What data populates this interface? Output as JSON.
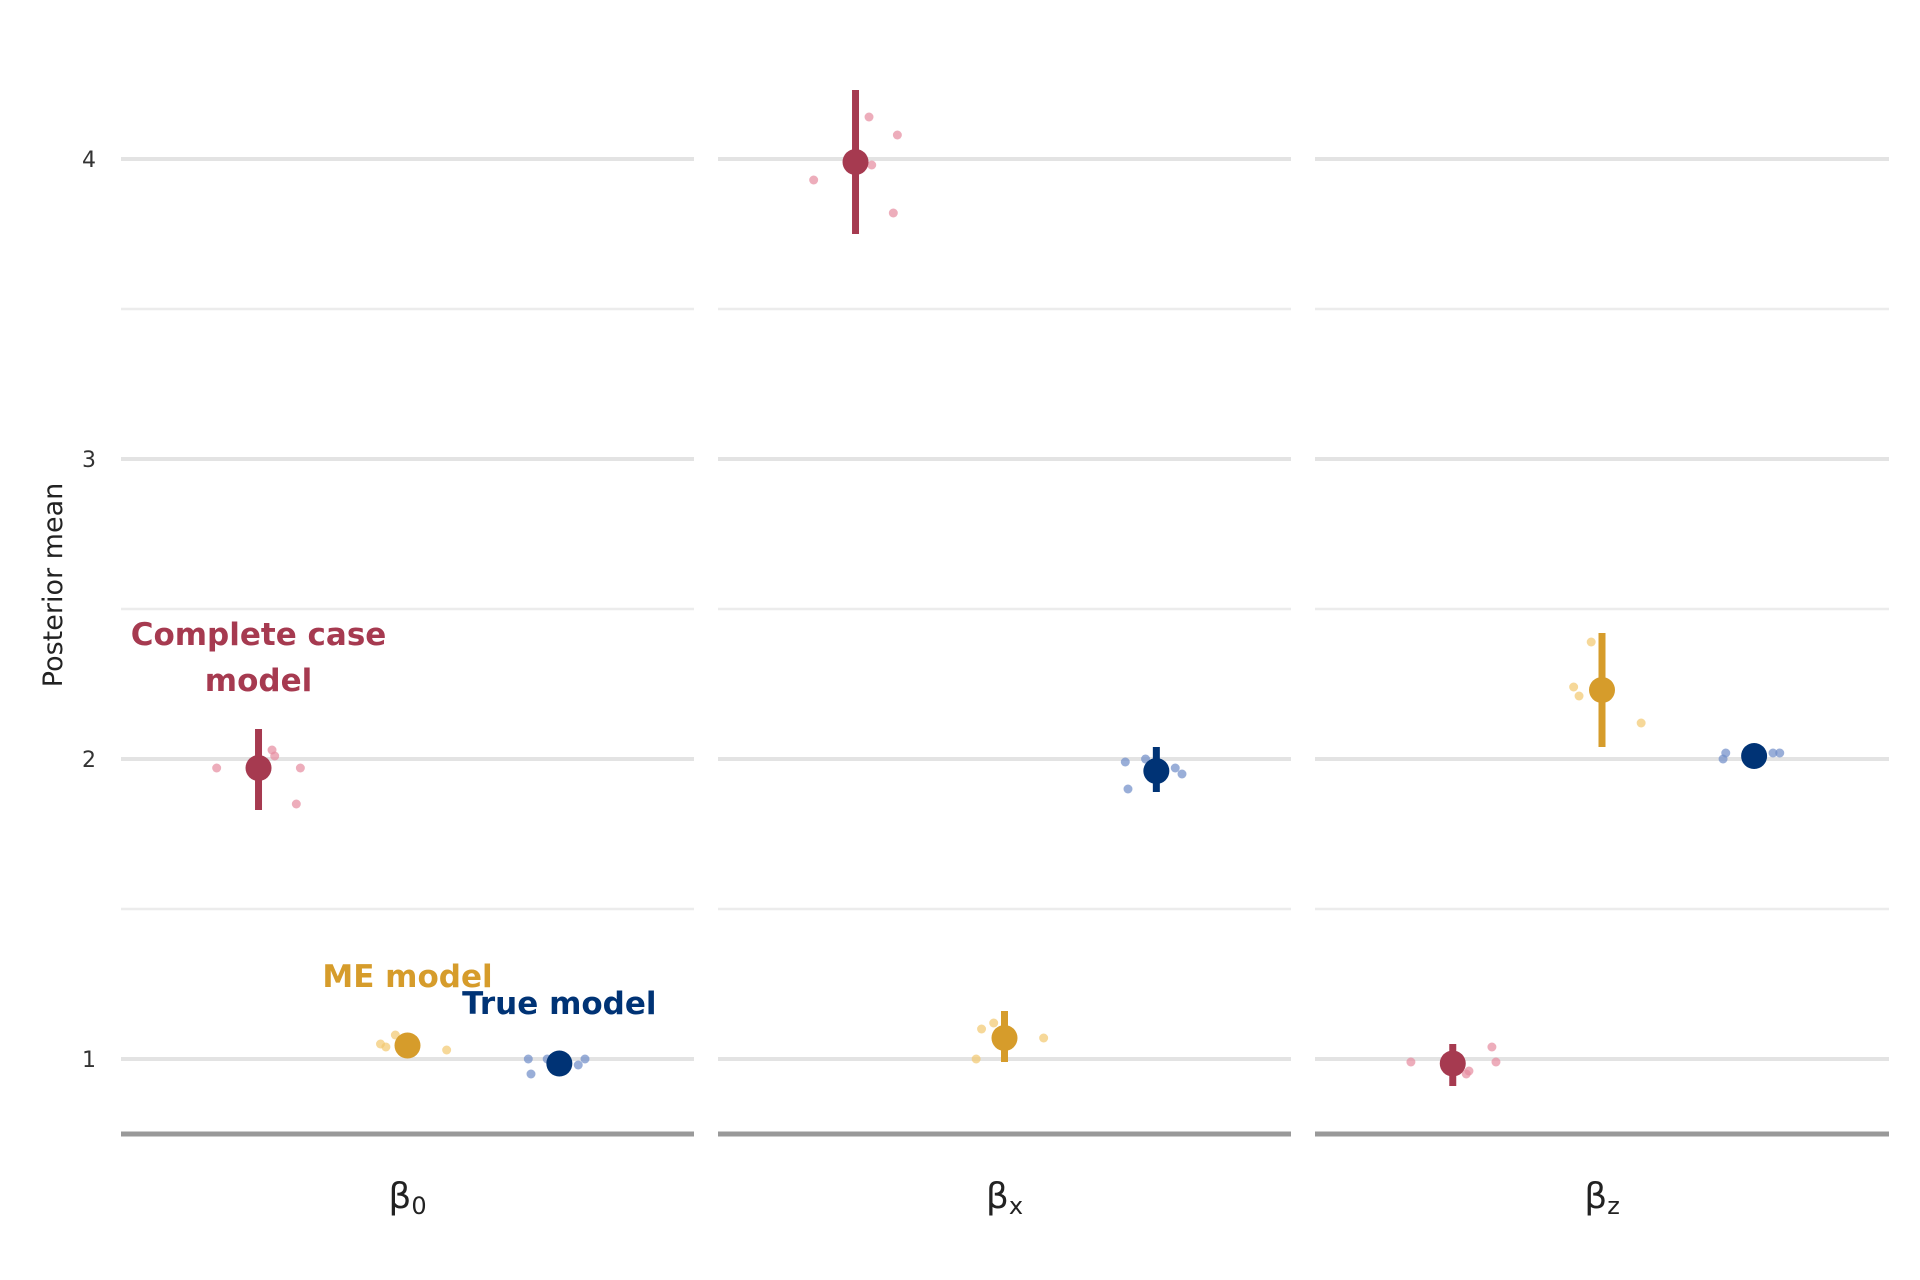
{
  "chart_data": {
    "type": "scatter",
    "ylabel": "Posterior mean",
    "xlabel": "",
    "ylim": [
      0.75,
      4.3
    ],
    "y_ticks": [
      1,
      2,
      3,
      4
    ],
    "grid": true,
    "legend": "none",
    "colors": {
      "complete_case": "#A63A50",
      "me": "#D69C2B",
      "true": "#003375",
      "complete_case_light": "#E68A9E",
      "me_light": "#F2C76E",
      "true_light": "#6E8CC8"
    },
    "facets": [
      {
        "label": "β",
        "sub": "0",
        "models": [
          {
            "model": "complete_case",
            "mean": 1.97,
            "lower": 1.83,
            "upper": 2.1,
            "sims": [
              [
                -0.31,
                1.97
              ],
              [
                0.1,
                2.03
              ],
              [
                0.12,
                2.01
              ],
              [
                0.31,
                1.97
              ],
              [
                0.28,
                1.85
              ]
            ]
          },
          {
            "model": "me",
            "mean": 1.045,
            "lower": 1.045,
            "upper": 1.045,
            "sims": [
              [
                -0.2,
                1.05
              ],
              [
                -0.16,
                1.04
              ],
              [
                -0.09,
                1.08
              ],
              [
                0.29,
                1.03
              ]
            ]
          },
          {
            "model": "true",
            "mean": 0.985,
            "lower": 0.985,
            "upper": 0.985,
            "sims": [
              [
                -0.23,
                1.0
              ],
              [
                -0.21,
                0.95
              ],
              [
                -0.09,
                1.0
              ],
              [
                0.14,
                0.98
              ],
              [
                0.19,
                1.0
              ]
            ]
          }
        ]
      },
      {
        "label": "β",
        "sub": "x",
        "models": [
          {
            "model": "complete_case",
            "mean": 3.99,
            "lower": 3.75,
            "upper": 4.23,
            "sims": [
              [
                -0.31,
                3.93
              ],
              [
                0.1,
                4.14
              ],
              [
                0.12,
                3.98
              ],
              [
                0.31,
                4.08
              ],
              [
                0.28,
                3.82
              ]
            ]
          },
          {
            "model": "me",
            "mean": 1.07,
            "lower": 0.99,
            "upper": 1.16,
            "sims": [
              [
                -0.21,
                1.0
              ],
              [
                -0.17,
                1.1
              ],
              [
                -0.08,
                1.12
              ],
              [
                0.29,
                1.07
              ]
            ]
          },
          {
            "model": "true",
            "mean": 1.96,
            "lower": 1.89,
            "upper": 2.04,
            "sims": [
              [
                -0.23,
                1.99
              ],
              [
                -0.21,
                1.9
              ],
              [
                -0.08,
                2.0
              ],
              [
                0.14,
                1.97
              ],
              [
                0.19,
                1.95
              ]
            ]
          }
        ]
      },
      {
        "label": "β",
        "sub": "z",
        "models": [
          {
            "model": "complete_case",
            "mean": 0.985,
            "lower": 0.91,
            "upper": 1.05,
            "sims": [
              [
                -0.31,
                0.99
              ],
              [
                0.1,
                0.95
              ],
              [
                0.12,
                0.96
              ],
              [
                0.29,
                1.04
              ],
              [
                0.32,
                0.99
              ]
            ]
          },
          {
            "model": "me",
            "mean": 2.23,
            "lower": 2.04,
            "upper": 2.42,
            "sims": [
              [
                -0.21,
                2.24
              ],
              [
                -0.17,
                2.21
              ],
              [
                -0.08,
                2.39
              ],
              [
                0.29,
                2.12
              ]
            ]
          },
          {
            "model": "true",
            "mean": 2.01,
            "lower": 2.01,
            "upper": 2.01,
            "sims": [
              [
                -0.23,
                2.0
              ],
              [
                -0.21,
                2.02
              ],
              [
                0.14,
                2.02
              ],
              [
                0.19,
                2.02
              ]
            ]
          }
        ]
      }
    ],
    "annotations": [
      {
        "facet": 0,
        "model": "complete_case",
        "lines": [
          "Complete case",
          "model"
        ],
        "y": 2.38
      },
      {
        "facet": 0,
        "model": "me",
        "lines": [
          "ME model"
        ],
        "y": 1.24
      },
      {
        "facet": 0,
        "model": "true",
        "lines": [
          "True model"
        ],
        "y": 1.15
      }
    ]
  }
}
